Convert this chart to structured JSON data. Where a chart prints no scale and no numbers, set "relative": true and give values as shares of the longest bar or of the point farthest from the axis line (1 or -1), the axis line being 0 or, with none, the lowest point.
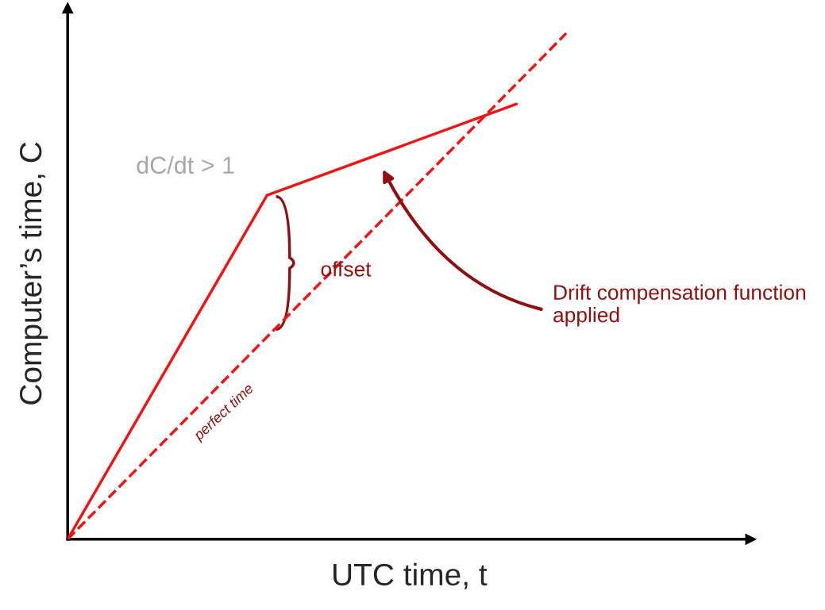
{
  "chart_data": {
    "type": "line",
    "relative": true,
    "xlabel": "UTC time, t",
    "ylabel": "Computer’s time, C",
    "categories": [
      null,
      null,
      null,
      null,
      null,
      null,
      null,
      null,
      null,
      null,
      null
    ],
    "series": [
      {
        "color": "#f01414",
        "values": [
          0,
          null,
          null,
          null,
          0.68,
          null,
          null,
          null,
          null,
          0.86,
          null
        ],
        "line_style": "solid"
      },
      {
        "name": "perfect time",
        "color": "#f01414",
        "values": [
          0,
          null,
          null,
          null,
          null,
          null,
          null,
          null,
          null,
          null,
          1.0
        ],
        "line_style": "dashed"
      }
    ],
    "annotations": [
      "offset",
      "Drift compensation function applied",
      "dC/dt > 1"
    ]
  }
}
